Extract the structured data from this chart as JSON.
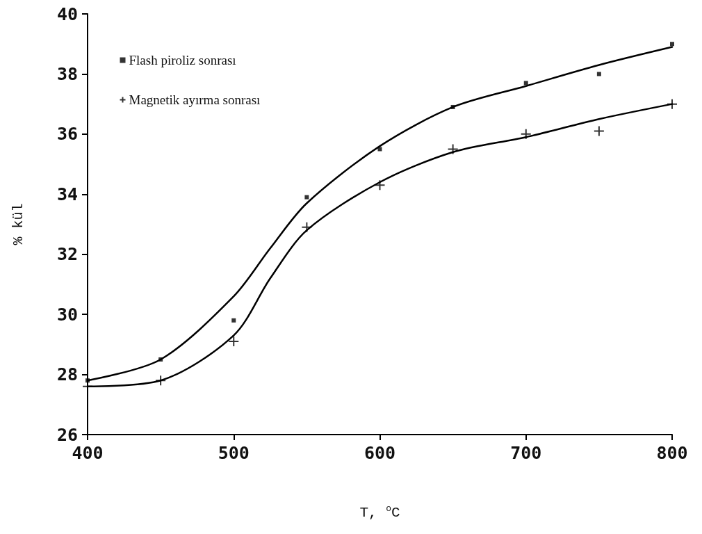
{
  "chart_data": {
    "type": "scatter",
    "xlabel": "T, $^{o}$C",
    "ylabel": "% kül",
    "xlim": [
      400,
      800
    ],
    "xticks": [
      400,
      500,
      600,
      700,
      800
    ],
    "ylim": [
      26,
      40
    ],
    "yticks": [
      26,
      28,
      30,
      32,
      34,
      36,
      38,
      40
    ],
    "grid": false,
    "legend": "top left",
    "series": [
      {
        "name": "Flash piroliz sonrası",
        "type": "scatter",
        "marker": "square",
        "color": "#000000",
        "x": [
          400,
          450,
          500,
          550,
          600,
          650,
          700,
          750,
          800
        ],
        "values": [
          27.8,
          28.5,
          29.8,
          33.9,
          35.5,
          36.9,
          37.7,
          38.0,
          39.0
        ]
      },
      {
        "name": "Magnetik ayırma sonrası",
        "type": "scatter",
        "marker": "cross",
        "color": "#000000",
        "x": [
          400,
          450,
          500,
          550,
          600,
          650,
          700,
          750,
          800
        ],
        "values": [
          27.6,
          27.8,
          29.1,
          32.9,
          34.3,
          35.5,
          36.0,
          36.1,
          37.0
        ]
      },
      {
        "type": "line",
        "marker": "none",
        "color": "#000000",
        "x": [
          400,
          450,
          500,
          525,
          550,
          600,
          650,
          700,
          750,
          800
        ],
        "values": [
          27.8,
          28.5,
          30.6,
          32.2,
          33.7,
          35.6,
          36.9,
          37.6,
          38.3,
          38.9
        ]
      },
      {
        "type": "line",
        "marker": "none",
        "color": "#000000",
        "x": [
          400,
          450,
          500,
          525,
          550,
          600,
          650,
          700,
          750,
          800
        ],
        "values": [
          27.6,
          27.8,
          29.3,
          31.2,
          32.8,
          34.4,
          35.4,
          35.9,
          36.5,
          37.0
        ]
      }
    ]
  }
}
